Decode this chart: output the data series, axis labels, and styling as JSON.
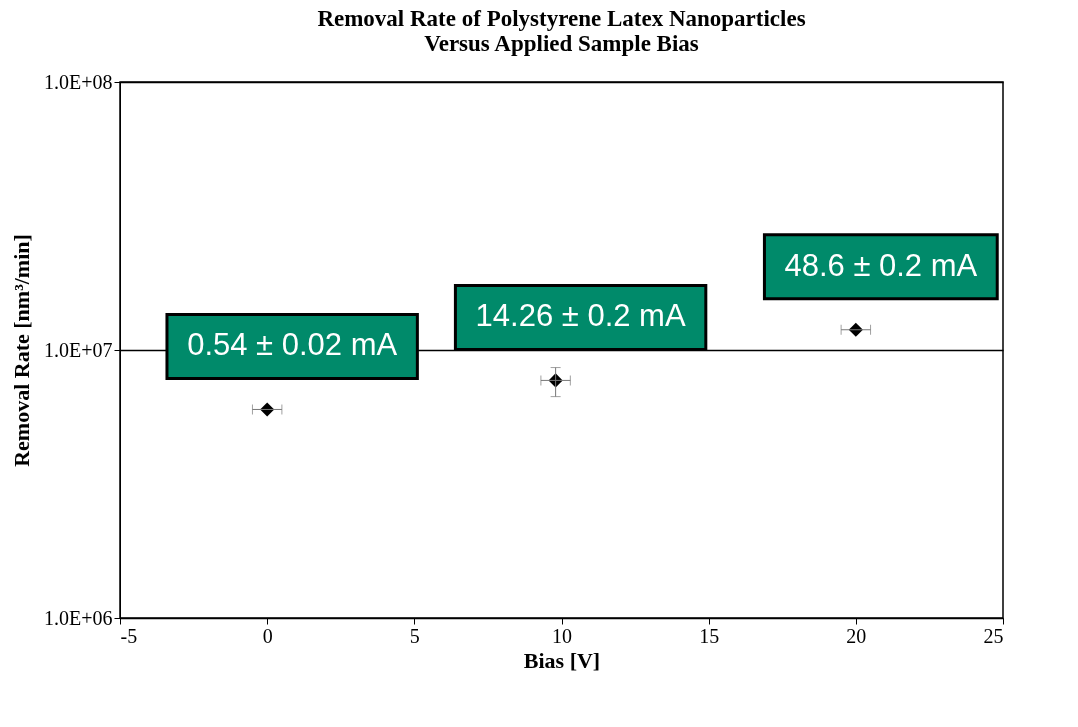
{
  "chart_data": {
    "type": "scatter",
    "title": "Removal Rate of Polystyrene Latex Nanoparticles\nVersus Applied Sample Bias",
    "xlabel": "Bias [V]",
    "ylabel": "Removal Rate [nm³/min]",
    "x": [
      0,
      9.8,
      20
    ],
    "series": [
      {
        "color": "#000000",
        "values": [
          6000000.0,
          7700000.0,
          11900000.0
        ],
        "errors": [
          null,
          [
            6700000.0,
            8600000.0
          ],
          null
        ],
        "xerrors": [
          0.5,
          0.5,
          0.5
        ]
      }
    ],
    "marker": "diamond",
    "log": "y",
    "grid": "y",
    "xlim": [
      -5,
      25
    ],
    "xticks": [
      -5,
      0,
      5,
      10,
      15,
      20,
      25
    ],
    "ylim": [
      1000000,
      100000000
    ],
    "yticks": [
      {
        "value": 1000000,
        "label": "1.0E+06"
      },
      {
        "value": 10000000,
        "label": "1.0E+07"
      },
      {
        "value": 100000000,
        "label": "1.0E+08"
      }
    ],
    "annotations": [
      {
        "text": "0.54 ± 0.02 mA",
        "x": 0,
        "y": 6000000.0
      },
      {
        "text": "14.26 ± 0.2 mA",
        "x": 9.8,
        "y": 7700000.0
      },
      {
        "text": "48.6 ± 0.2 mA",
        "x": 20,
        "y": 11900000.0
      }
    ]
  }
}
